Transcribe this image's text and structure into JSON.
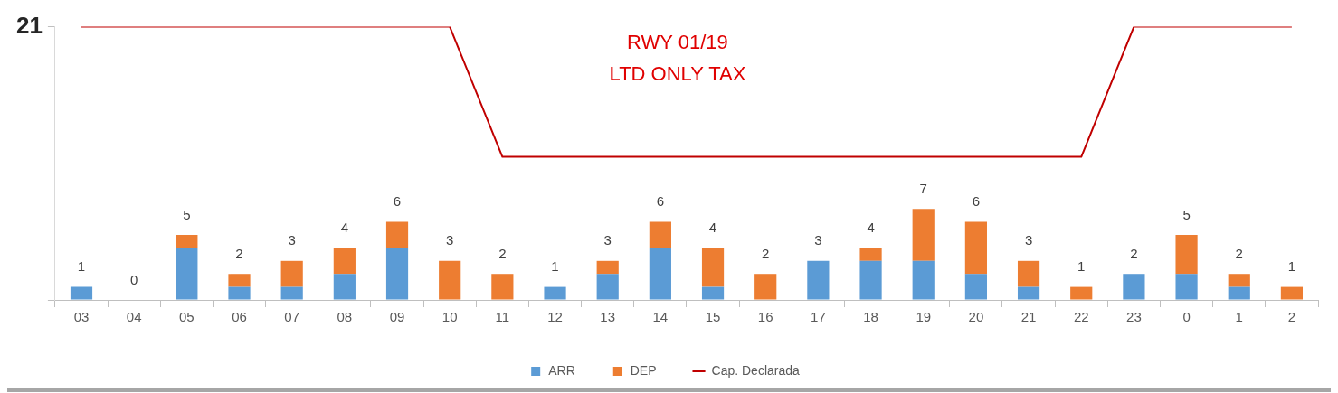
{
  "chart_data": {
    "type": "bar",
    "stacked": true,
    "categories": [
      "03",
      "04",
      "05",
      "06",
      "07",
      "08",
      "09",
      "10",
      "11",
      "12",
      "13",
      "14",
      "15",
      "16",
      "17",
      "18",
      "19",
      "20",
      "21",
      "22",
      "23",
      "0",
      "1",
      "2"
    ],
    "series": [
      {
        "name": "ARR",
        "color": "#5b9bd5",
        "values": [
          1,
          0,
          4,
          1,
          1,
          2,
          4,
          0,
          0,
          1,
          2,
          4,
          1,
          0,
          3,
          3,
          3,
          2,
          1,
          0,
          2,
          2,
          1,
          0
        ]
      },
      {
        "name": "DEP",
        "color": "#ed7d31",
        "values": [
          0,
          0,
          1,
          1,
          2,
          2,
          2,
          3,
          2,
          0,
          1,
          2,
          3,
          2,
          0,
          1,
          4,
          4,
          2,
          1,
          0,
          3,
          1,
          1
        ]
      },
      {
        "name": "Cap. Declarada",
        "type": "line",
        "color": "#c00000",
        "values": [
          21,
          21,
          21,
          21,
          21,
          21,
          21,
          21,
          11,
          11,
          11,
          11,
          11,
          11,
          11,
          11,
          11,
          11,
          11,
          11,
          21,
          21,
          21,
          21
        ]
      }
    ],
    "totals": [
      "1",
      "0",
      "5",
      "2",
      "3",
      "4",
      "6",
      "3",
      "2",
      "1",
      "3",
      "6",
      "4",
      "2",
      "3",
      "4",
      "7",
      "6",
      "3",
      "1",
      "2",
      "5",
      "2",
      "1"
    ],
    "ylim": [
      0,
      21
    ],
    "yticks": [
      {
        "value": 0,
        "label": null
      },
      21
    ],
    "grid": false,
    "legend": "bottom",
    "marker": "none",
    "annotations": [
      "RWY 01/19\nLTD ONLY TAX"
    ]
  }
}
